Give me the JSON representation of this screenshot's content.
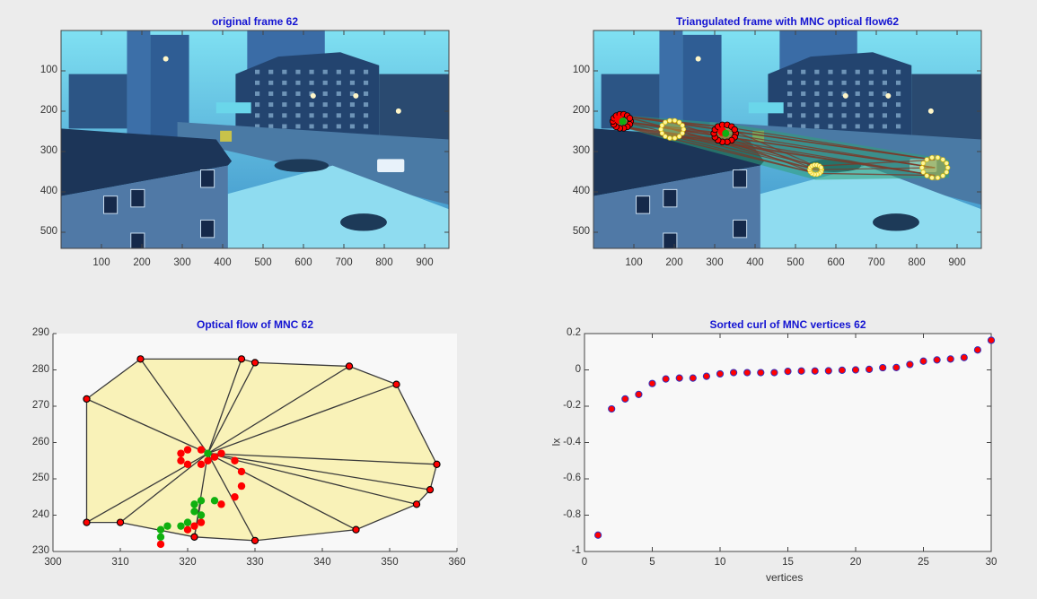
{
  "colors": {
    "background": "#ececec",
    "title": "#1414d2",
    "axis": "#444444",
    "polygon_fill": "#f9f2b8",
    "edge": "#3a3a3a",
    "vertex_red": "#ff0000",
    "flow_green": "#10b010",
    "overlay_green": "#2fa078",
    "overlay_edge": "#7a3a2a",
    "cluster_yellow": "#fff59a"
  },
  "chart_data": [
    {
      "id": "original-frame",
      "type": "image",
      "title": "original frame 62",
      "xticks": [
        100,
        200,
        300,
        400,
        500,
        600,
        700,
        800,
        900
      ],
      "yticks": [
        100,
        200,
        300,
        400,
        500
      ],
      "xlim": [
        0,
        960
      ],
      "ylim": [
        540,
        0
      ],
      "content": "Blue-tinted street scene: apartment towers, MOTEL sign, road with white pickup truck, snow-covered lawn, foreground house roof"
    },
    {
      "id": "triangulated-frame",
      "type": "image",
      "title": "Triangulated frame with MNC optical flow62",
      "xticks": [
        100,
        200,
        300,
        400,
        500,
        600,
        700,
        800,
        900
      ],
      "yticks": [
        100,
        200,
        300,
        400,
        500
      ],
      "xlim": [
        0,
        960
      ],
      "ylim": [
        540,
        0
      ],
      "clusters": [
        {
          "cx": 70,
          "cy": 225,
          "style": "red-vertices",
          "r": 22
        },
        {
          "cx": 195,
          "cy": 245,
          "style": "yellow-vertices",
          "r": 28
        },
        {
          "cx": 325,
          "cy": 255,
          "style": "red-vertices",
          "r": 27
        },
        {
          "cx": 550,
          "cy": 345,
          "style": "yellow-vertices",
          "r": 15
        },
        {
          "cx": 845,
          "cy": 340,
          "style": "yellow-vertices",
          "r": 32
        }
      ],
      "content": "Same street scene overlaid with green triangulated mesh linking five MNC clusters"
    },
    {
      "id": "optical-flow",
      "type": "scatter",
      "title": "Optical flow of MNC 62",
      "xlabel": "",
      "ylabel": "",
      "xlim": [
        300,
        360
      ],
      "ylim": [
        230,
        290
      ],
      "xticks": [
        300,
        310,
        320,
        330,
        340,
        350,
        360
      ],
      "yticks": [
        230,
        240,
        250,
        260,
        270,
        280,
        290
      ],
      "hull_vertices": [
        [
          305,
          272
        ],
        [
          313,
          283
        ],
        [
          328,
          283
        ],
        [
          330,
          282
        ],
        [
          344,
          281
        ],
        [
          351,
          276
        ],
        [
          357,
          254
        ],
        [
          356,
          247
        ],
        [
          354,
          243
        ],
        [
          345,
          236
        ],
        [
          330,
          233
        ],
        [
          321,
          234
        ],
        [
          310,
          238
        ],
        [
          305,
          238
        ]
      ],
      "center": [
        323,
        257
      ],
      "fan_targets": [
        [
          305,
          272
        ],
        [
          313,
          283
        ],
        [
          328,
          283
        ],
        [
          330,
          282
        ],
        [
          344,
          281
        ],
        [
          351,
          276
        ],
        [
          357,
          254
        ],
        [
          356,
          247
        ],
        [
          354,
          243
        ],
        [
          345,
          236
        ],
        [
          330,
          233
        ],
        [
          321,
          234
        ],
        [
          310,
          238
        ],
        [
          305,
          238
        ]
      ],
      "red_points": [
        [
          319,
          257
        ],
        [
          320,
          258
        ],
        [
          322,
          258
        ],
        [
          319,
          255
        ],
        [
          320,
          254
        ],
        [
          322,
          254
        ],
        [
          323,
          255
        ],
        [
          324,
          256
        ],
        [
          325,
          257
        ],
        [
          327,
          255
        ],
        [
          328,
          252
        ],
        [
          328,
          248
        ],
        [
          327,
          245
        ],
        [
          325,
          243
        ],
        [
          322,
          238
        ],
        [
          321,
          237
        ],
        [
          320,
          236
        ],
        [
          316,
          232
        ]
      ],
      "green_points": [
        [
          323,
          257
        ],
        [
          322,
          244
        ],
        [
          321,
          243
        ],
        [
          321,
          241
        ],
        [
          322,
          240
        ],
        [
          324,
          244
        ],
        [
          320,
          238
        ],
        [
          319,
          237
        ],
        [
          317,
          237
        ],
        [
          316,
          236
        ],
        [
          316,
          234
        ]
      ]
    },
    {
      "id": "sorted-curl",
      "type": "scatter",
      "title": "Sorted curl of MNC vertices 62",
      "xlabel": "vertices",
      "ylabel": "lx",
      "xlim": [
        0,
        30
      ],
      "ylim": [
        -1,
        0.2
      ],
      "xticks": [
        0,
        5,
        10,
        15,
        20,
        25,
        30
      ],
      "yticks": [
        0.2,
        0,
        -0.2,
        -0.4,
        -0.6,
        -0.8,
        -1
      ],
      "ytick_labels": [
        "0.2",
        "0",
        "-0.2",
        "-0.4",
        "-0.6",
        "-0.8",
        "-1"
      ],
      "x": [
        1,
        2,
        3,
        4,
        5,
        6,
        7,
        8,
        9,
        10,
        11,
        12,
        13,
        14,
        15,
        16,
        17,
        18,
        19,
        20,
        21,
        22,
        23,
        24,
        25,
        26,
        27,
        28,
        29,
        30
      ],
      "values": [
        -0.91,
        -0.215,
        -0.16,
        -0.135,
        -0.075,
        -0.05,
        -0.045,
        -0.045,
        -0.035,
        -0.022,
        -0.015,
        -0.015,
        -0.015,
        -0.015,
        -0.008,
        -0.006,
        -0.006,
        -0.005,
        -0.002,
        0.0,
        0.003,
        0.012,
        0.013,
        0.03,
        0.048,
        0.055,
        0.06,
        0.068,
        0.11,
        0.163
      ]
    }
  ]
}
